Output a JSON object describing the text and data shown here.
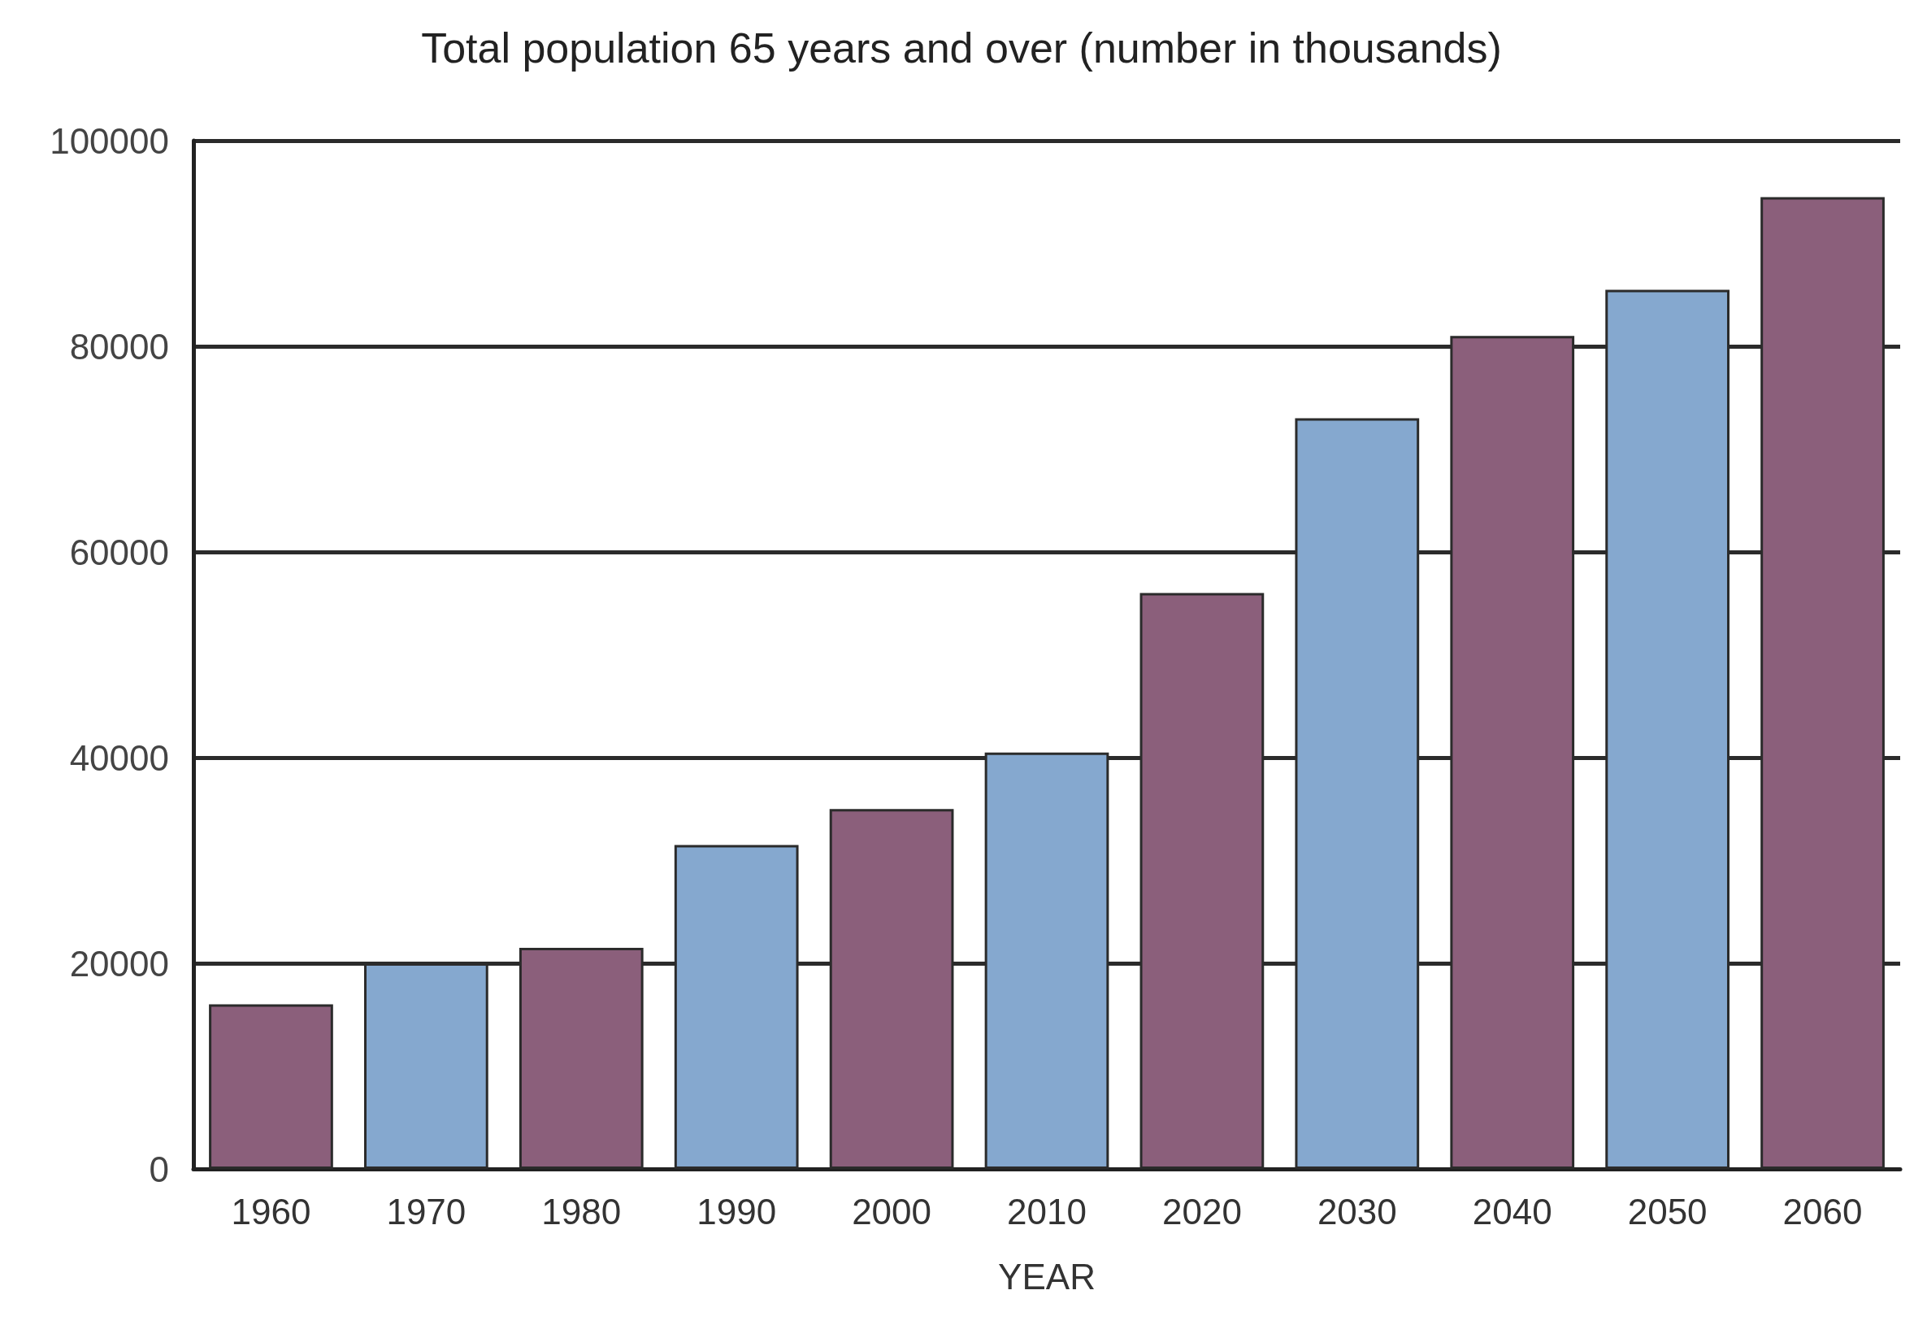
{
  "chart_data": {
    "type": "bar",
    "title": "Total population 65 years and over (number in thousands)",
    "xlabel": "YEAR",
    "categories": [
      "1960",
      "1970",
      "1980",
      "1990",
      "2000",
      "2010",
      "2020",
      "2030",
      "2040",
      "2050",
      "2060"
    ],
    "values": [
      16000,
      20000,
      21500,
      31500,
      35000,
      40500,
      56000,
      73000,
      81000,
      85500,
      94500
    ],
    "colors": [
      "#8b5f7b",
      "#85a8cf",
      "#8b5f7b",
      "#85a8cf",
      "#8b5f7b",
      "#85a8cf",
      "#8b5f7b",
      "#85a8cf",
      "#8b5f7b",
      "#85a8cf",
      "#8b5f7b"
    ],
    "ylim": [
      0,
      100000
    ],
    "yticks": [
      0,
      20000,
      40000,
      60000,
      80000,
      100000
    ],
    "grid": "y"
  }
}
